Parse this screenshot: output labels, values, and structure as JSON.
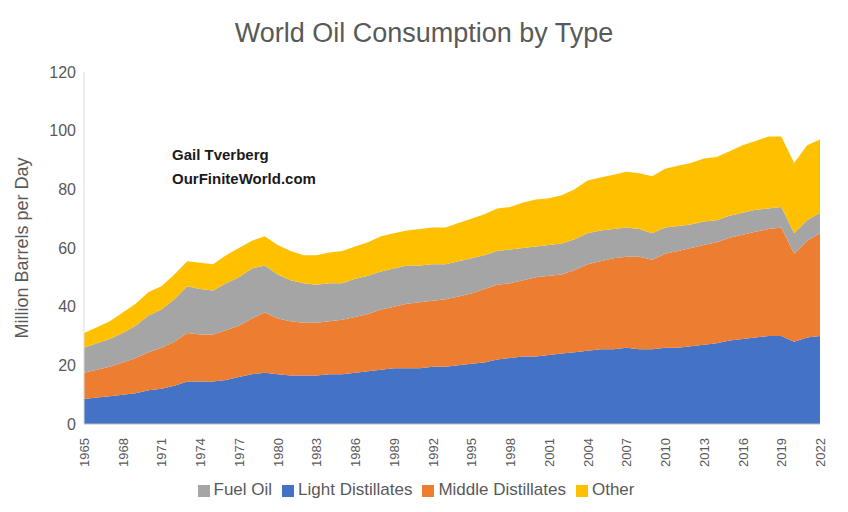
{
  "chart_data": {
    "type": "area",
    "title": "World Oil Consumption by Type",
    "y_label": "Million Barrels per Day",
    "annotations": [
      "Gail Tverberg",
      "OurFiniteWorld.com"
    ],
    "stacked": true,
    "grid": false,
    "legend": "bottom",
    "x": [
      1965,
      1966,
      1967,
      1968,
      1969,
      1970,
      1971,
      1972,
      1973,
      1974,
      1975,
      1976,
      1977,
      1978,
      1979,
      1980,
      1981,
      1982,
      1983,
      1984,
      1985,
      1986,
      1987,
      1988,
      1989,
      1990,
      1991,
      1992,
      1993,
      1994,
      1995,
      1996,
      1997,
      1998,
      1999,
      2000,
      2001,
      2002,
      2003,
      2004,
      2005,
      2006,
      2007,
      2008,
      2009,
      2010,
      2011,
      2012,
      2013,
      2014,
      2015,
      2016,
      2017,
      2018,
      2019,
      2020,
      2021,
      2022
    ],
    "xlim": [
      1965,
      2022
    ],
    "xticks": [
      1965,
      1968,
      1971,
      1974,
      1977,
      1980,
      1983,
      1986,
      1989,
      1992,
      1995,
      1998,
      2001,
      2004,
      2007,
      2010,
      2013,
      2016,
      2019,
      2022
    ],
    "ylim": [
      0,
      120
    ],
    "yticks": [
      0,
      20,
      40,
      60,
      80,
      100,
      120
    ],
    "series": [
      {
        "name": "Light Distillates",
        "color": "#4472c4",
        "values": [
          8.5,
          9,
          9.5,
          10,
          10.5,
          11.5,
          12,
          13,
          14.5,
          14.5,
          14.5,
          15,
          16,
          17,
          17.5,
          17,
          16.5,
          16.5,
          16.5,
          17,
          17,
          17.5,
          18,
          18.5,
          19,
          19,
          19,
          19.5,
          19.5,
          20,
          20.5,
          21,
          22,
          22.5,
          23,
          23,
          23.5,
          24,
          24.5,
          25,
          25.5,
          25.5,
          26,
          25.5,
          25.5,
          26,
          26,
          26.5,
          27,
          27.5,
          28.5,
          29,
          29.5,
          30,
          30,
          28,
          29.5,
          30
        ]
      },
      {
        "name": "Middle Distillates",
        "color": "#ed7d31",
        "values": [
          9,
          9.5,
          10,
          11,
          12,
          13,
          14,
          15,
          16.5,
          16,
          16,
          17,
          17.5,
          19,
          20.5,
          19,
          18.5,
          18,
          18,
          18,
          18.5,
          19,
          19.5,
          20.5,
          21,
          22,
          22.5,
          22.5,
          23,
          23.5,
          24,
          25,
          25.5,
          25.5,
          26,
          27,
          27,
          27,
          28,
          29.5,
          30,
          31,
          31,
          31.5,
          30.5,
          32,
          33,
          33.5,
          34,
          34.5,
          35,
          35.5,
          36,
          36.5,
          37,
          30,
          33,
          35
        ]
      },
      {
        "name": "Fuel Oil",
        "color": "#a5a5a5",
        "values": [
          8.5,
          9,
          9.5,
          10,
          11,
          12.5,
          13,
          14.5,
          16,
          15.5,
          15,
          16,
          16.5,
          17,
          16,
          15,
          14,
          13.5,
          13,
          13,
          12.5,
          13,
          13,
          13,
          13,
          13,
          12.5,
          12.5,
          12,
          12,
          12,
          11.5,
          11.5,
          11.5,
          11,
          10.5,
          10.5,
          10.5,
          10.5,
          10.5,
          10.5,
          10,
          10,
          9.5,
          9,
          9,
          8.5,
          8,
          8,
          7.5,
          7.5,
          7.5,
          7.5,
          7,
          7,
          7,
          7,
          7
        ]
      },
      {
        "name": "Other",
        "color": "#ffc000",
        "values": [
          5,
          5.5,
          6,
          7,
          7.5,
          8,
          8,
          8.5,
          8.5,
          9,
          9,
          9.5,
          10,
          9.5,
          10,
          10,
          10,
          9.5,
          10,
          10.5,
          11,
          11,
          11.5,
          12,
          12,
          12,
          12.5,
          12.5,
          12.5,
          13,
          13.5,
          14,
          14.5,
          14.5,
          15.5,
          16,
          16,
          16.5,
          17,
          18,
          18,
          18.5,
          19,
          19,
          19.5,
          20,
          20.5,
          21,
          21.5,
          21.5,
          22,
          23,
          23.5,
          24.5,
          24,
          24,
          25.5,
          25
        ]
      }
    ]
  }
}
